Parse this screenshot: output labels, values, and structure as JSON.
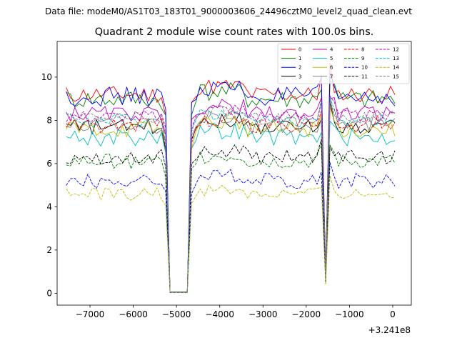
{
  "chart_data": {
    "type": "line",
    "suptitle": "Data file: modeM0/AS1T03_183T01_9000003606_24496cztM0_level2_quad_clean.evt",
    "title": "Quadrant 2 module wise count rates with 100.0s bins.",
    "xlabel": "",
    "ylabel": "",
    "x_offset_label": "+3.241e8",
    "xlim": [
      -7760,
      430
    ],
    "ylim": [
      -0.55,
      11.65
    ],
    "xticks": [
      -7000,
      -6000,
      -5000,
      -4000,
      -3000,
      -2000,
      -1000,
      0
    ],
    "xtick_labels": [
      "−7000",
      "−6000",
      "−5000",
      "−4000",
      "−3000",
      "−2000",
      "−1000",
      "0"
    ],
    "yticks": [
      0,
      2,
      4,
      6,
      8,
      10
    ],
    "ytick_labels": [
      "0",
      "2",
      "4",
      "6",
      "8",
      "10"
    ],
    "legend_location": "top-right",
    "x_segments": [
      {
        "start": -7550,
        "end": -5250,
        "step": 100
      },
      {
        "start": -5150,
        "end": -4750,
        "step": 100
      },
      {
        "start": -4650,
        "end": -1750,
        "step": 100
      },
      {
        "start": -1650,
        "end": -1550,
        "step": 100
      },
      {
        "start": -1450,
        "end": 50,
        "step": 100
      }
    ],
    "series": [
      {
        "name": "0",
        "color": "#ff0000",
        "dash": "solid",
        "base": 9.2,
        "noise": 0.4
      },
      {
        "name": "1",
        "color": "#008000",
        "dash": "solid",
        "base": 9.0,
        "noise": 0.45
      },
      {
        "name": "2",
        "color": "#0000ff",
        "dash": "solid",
        "base": 9.1,
        "noise": 0.45
      },
      {
        "name": "3",
        "color": "#000000",
        "dash": "solid",
        "base": 7.7,
        "noise": 0.35
      },
      {
        "name": "4",
        "color": "#bf00bf",
        "dash": "solid",
        "base": 8.3,
        "noise": 0.35
      },
      {
        "name": "5",
        "color": "#00bfbf",
        "dash": "solid",
        "base": 7.2,
        "noise": 0.4
      },
      {
        "name": "6",
        "color": "#bfbf00",
        "dash": "solid",
        "base": 7.6,
        "noise": 0.4
      },
      {
        "name": "7",
        "color": "#808080",
        "dash": "solid",
        "base": 7.8,
        "noise": 0.4
      },
      {
        "name": "8",
        "color": "#ff0000",
        "dash": "dashed",
        "base": 7.8,
        "noise": 0.4
      },
      {
        "name": "9",
        "color": "#008000",
        "dash": "dashed",
        "base": 6.1,
        "noise": 0.35
      },
      {
        "name": "10",
        "color": "#0000ff",
        "dash": "dashed",
        "base": 5.2,
        "noise": 0.35
      },
      {
        "name": "11",
        "color": "#000000",
        "dash": "dashed",
        "base": 6.3,
        "noise": 0.35
      },
      {
        "name": "12",
        "color": "#bf00bf",
        "dash": "dashed",
        "base": 8.2,
        "noise": 0.3
      },
      {
        "name": "13",
        "color": "#00bfbf",
        "dash": "dashed",
        "base": 8.0,
        "noise": 0.3
      },
      {
        "name": "14",
        "color": "#bfbf00",
        "dash": "dashed",
        "base": 4.6,
        "noise": 0.3
      },
      {
        "name": "15",
        "color": "#808080",
        "dash": "dashed",
        "base": 8.1,
        "noise": 0.3
      }
    ]
  }
}
